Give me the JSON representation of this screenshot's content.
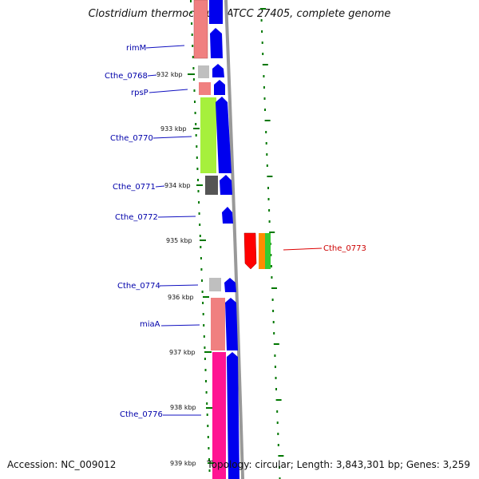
{
  "title": "Clostridium thermocellum ATCC 27405, complete genome",
  "accession": "Accession: NC_009012",
  "summary": "Topology: circular; Length: 3,843,301 bp; Genes: 3,259",
  "colors": {
    "forward_arrow": "#0000ee",
    "label_line": "#1010c0",
    "highlight_label": "#dd0000",
    "tick_green": "#007700",
    "backbone": "#999999"
  },
  "kbp_labels": [
    "932 kbp",
    "933 kbp",
    "934 kbp",
    "935 kbp",
    "936 kbp",
    "937 kbp",
    "938 kbp",
    "939 kbp"
  ],
  "genes": [
    {
      "name": "rimM",
      "color": "#0000aa"
    },
    {
      "name": "Cthe_0768",
      "color": "#0000aa"
    },
    {
      "name": "rpsP",
      "color": "#0000aa"
    },
    {
      "name": "Cthe_0770",
      "color": "#0000aa"
    },
    {
      "name": "Cthe_0771",
      "color": "#0000aa"
    },
    {
      "name": "Cthe_0772",
      "color": "#0000aa"
    },
    {
      "name": "Cthe_0773",
      "color": "#cc0000"
    },
    {
      "name": "Cthe_0774",
      "color": "#0000aa"
    },
    {
      "name": "miaA",
      "color": "#0000aa"
    },
    {
      "name": "Cthe_0776",
      "color": "#0000aa"
    }
  ]
}
